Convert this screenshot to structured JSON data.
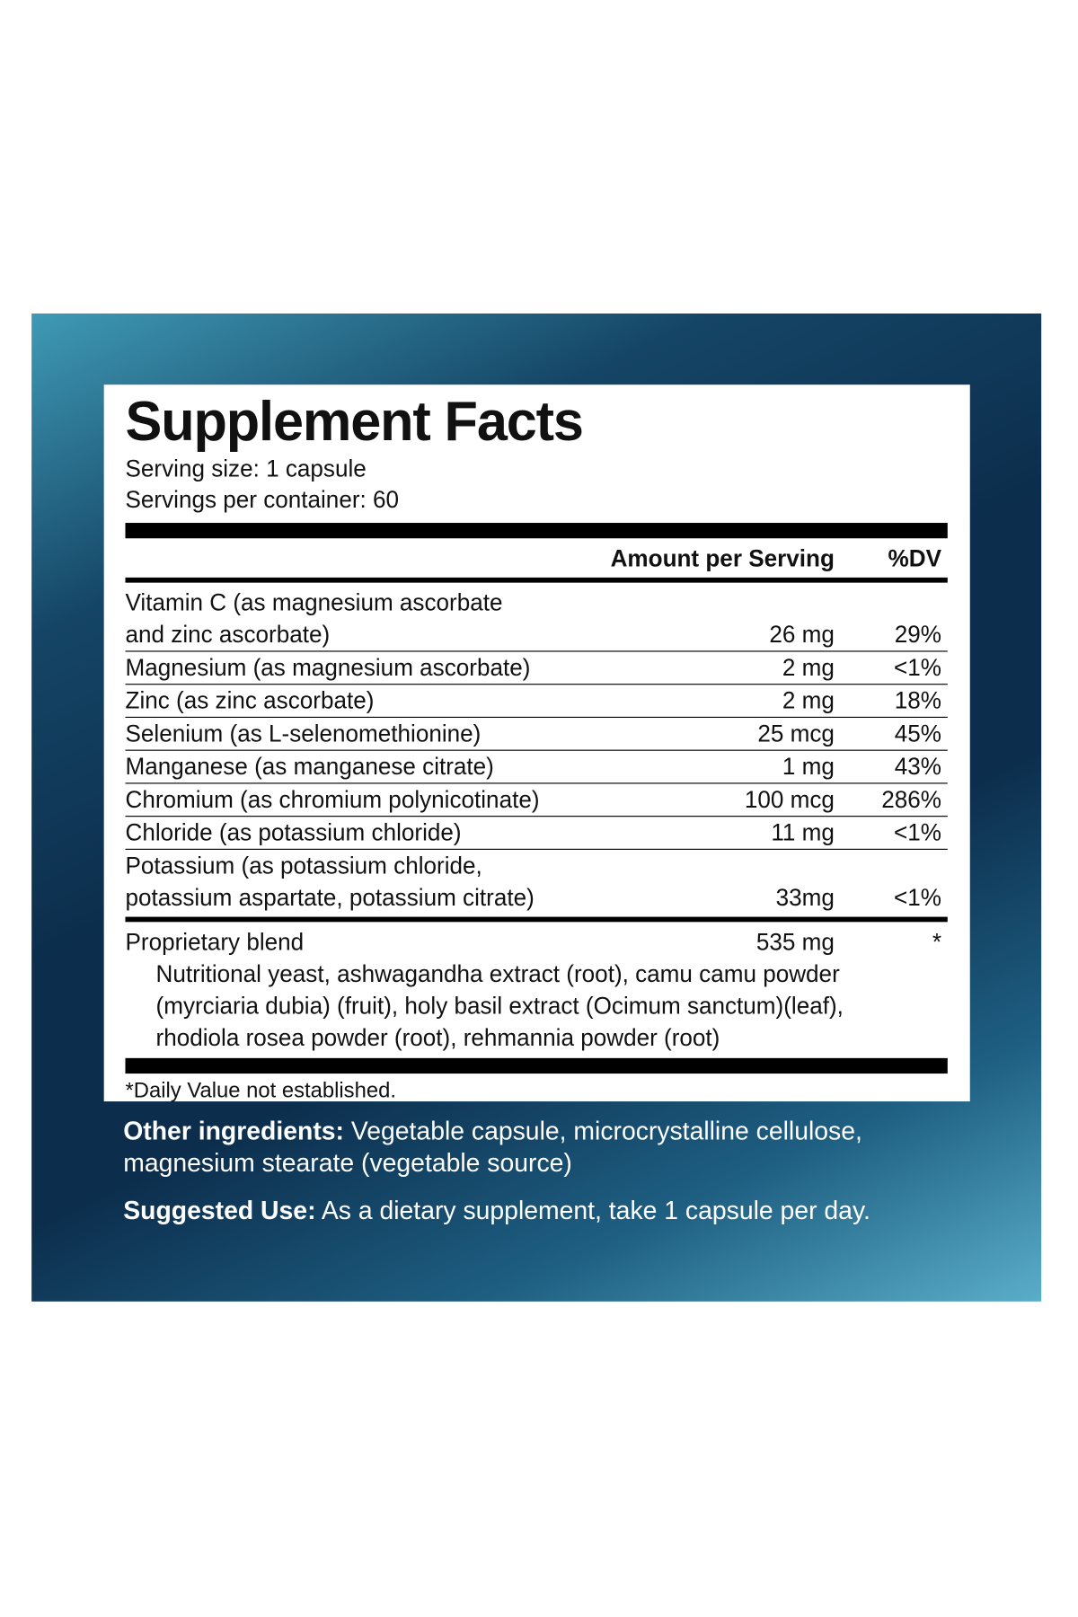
{
  "header": {
    "title": "Supplement Facts",
    "serving_size": "Serving size: 1 capsule",
    "servings_per_container": "Servings per container: 60"
  },
  "table": {
    "columns": [
      "Amount per Serving",
      "%DV"
    ],
    "rows": [
      {
        "name": [
          "Vitamin C (as magnesium ascorbate",
          "and zinc ascorbate)"
        ],
        "amount": "26 mg",
        "dv": "29%"
      },
      {
        "name": [
          "Magnesium (as magnesium ascorbate)"
        ],
        "amount": "2 mg",
        "dv": "<1%"
      },
      {
        "name": [
          "Zinc (as zinc ascorbate)"
        ],
        "amount": "2 mg",
        "dv": "18%"
      },
      {
        "name": [
          "Selenium (as L-selenomethionine)"
        ],
        "amount": "25 mcg",
        "dv": "45%"
      },
      {
        "name": [
          "Manganese (as manganese citrate)"
        ],
        "amount": "1 mg",
        "dv": "43%"
      },
      {
        "name": [
          "Chromium (as chromium polynicotinate)"
        ],
        "amount": "100 mcg",
        "dv": "286%"
      },
      {
        "name": [
          "Chloride (as potassium chloride)"
        ],
        "amount": "11 mg",
        "dv": "<1%"
      },
      {
        "name": [
          "Potassium (as potassium chloride,",
          "potassium aspartate, potassium citrate)"
        ],
        "amount": "33mg",
        "dv": "<1%"
      }
    ],
    "blend": {
      "name": "Proprietary blend",
      "amount": "535 mg",
      "dv": "*",
      "ingredients": [
        "Nutritional yeast, ashwagandha extract (root), camu camu powder",
        "(myrciaria dubia) (fruit), holy basil extract (Ocimum sanctum)(leaf),",
        "rhodiola rosea powder (root), rehmannia powder (root)"
      ]
    },
    "footnote": "*Daily Value not established."
  },
  "other_ingredients": {
    "label": "Other ingredients:",
    "text": "Vegetable capsule, microcrystalline cellulose, magnesium stearate (vegetable source)"
  },
  "suggested_use": {
    "label": "Suggested Use:",
    "text": "As a dietary supplement, take 1 capsule per day."
  }
}
